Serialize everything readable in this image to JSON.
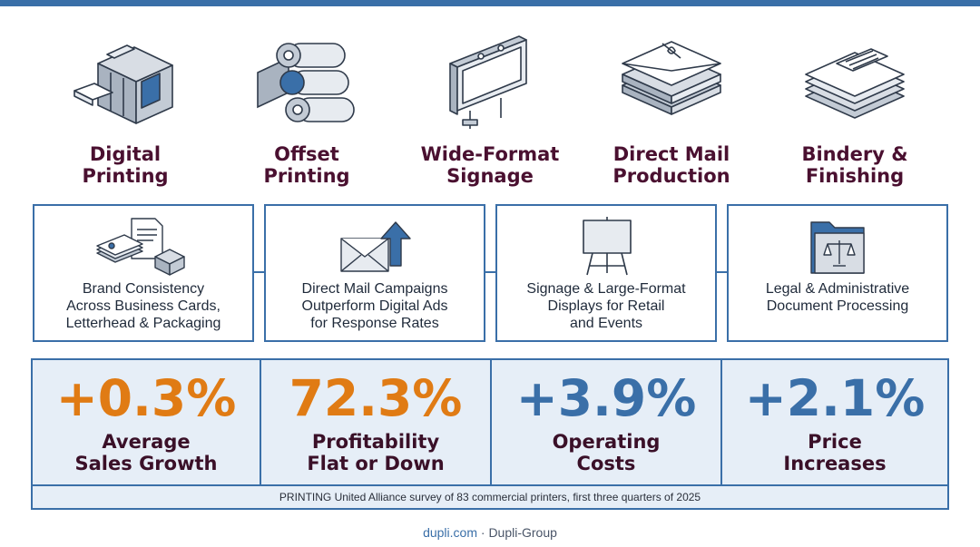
{
  "colors": {
    "brand_blue": "#3a6fa8",
    "title_maroon": "#4a1030",
    "stat_orange": "#e07b14",
    "stat_blue": "#3a6fa8",
    "panel_bg": "#e6eef7"
  },
  "services": [
    {
      "label": "Digital\nPrinting",
      "icon": "digital-press-icon"
    },
    {
      "label": "Offset\nPrinting",
      "icon": "offset-rollers-icon"
    },
    {
      "label": "Wide-Format\nSignage",
      "icon": "billboard-icon"
    },
    {
      "label": "Direct Mail\nProduction",
      "icon": "envelope-stack-icon"
    },
    {
      "label": "Bindery &\nFinishing",
      "icon": "paper-stack-icon"
    }
  ],
  "cards": [
    {
      "text": "Brand Consistency\nAcross Business Cards,\nLetterhead & Packaging",
      "icon": "business-cards-icon"
    },
    {
      "text": "Direct Mail Campaigns\nOutperform Digital Ads\nfor Response Rates",
      "icon": "envelope-arrow-icon"
    },
    {
      "text": "Signage & Large-Format\nDisplays for Retail\nand Events",
      "icon": "easel-sign-icon"
    },
    {
      "text": "Legal & Administrative\nDocument Processing",
      "icon": "legal-folder-icon"
    }
  ],
  "stats": [
    {
      "value": "+0.3%",
      "label": "Average\nSales Growth",
      "color": "#e07b14"
    },
    {
      "value": "72.3%",
      "label": "Profitability\nFlat or Down",
      "color": "#e07b14"
    },
    {
      "value": "+3.9%",
      "label": "Operating\nCosts",
      "color": "#3a6fa8"
    },
    {
      "value": "+2.1%",
      "label": "Price\nIncreases",
      "color": "#3a6fa8"
    }
  ],
  "source": "PRINTING United Alliance survey of 83 commercial printers, first three quarters of 2025",
  "footer": {
    "site": "dupli.com",
    "separator": "·",
    "company": "Dupli-Group"
  }
}
